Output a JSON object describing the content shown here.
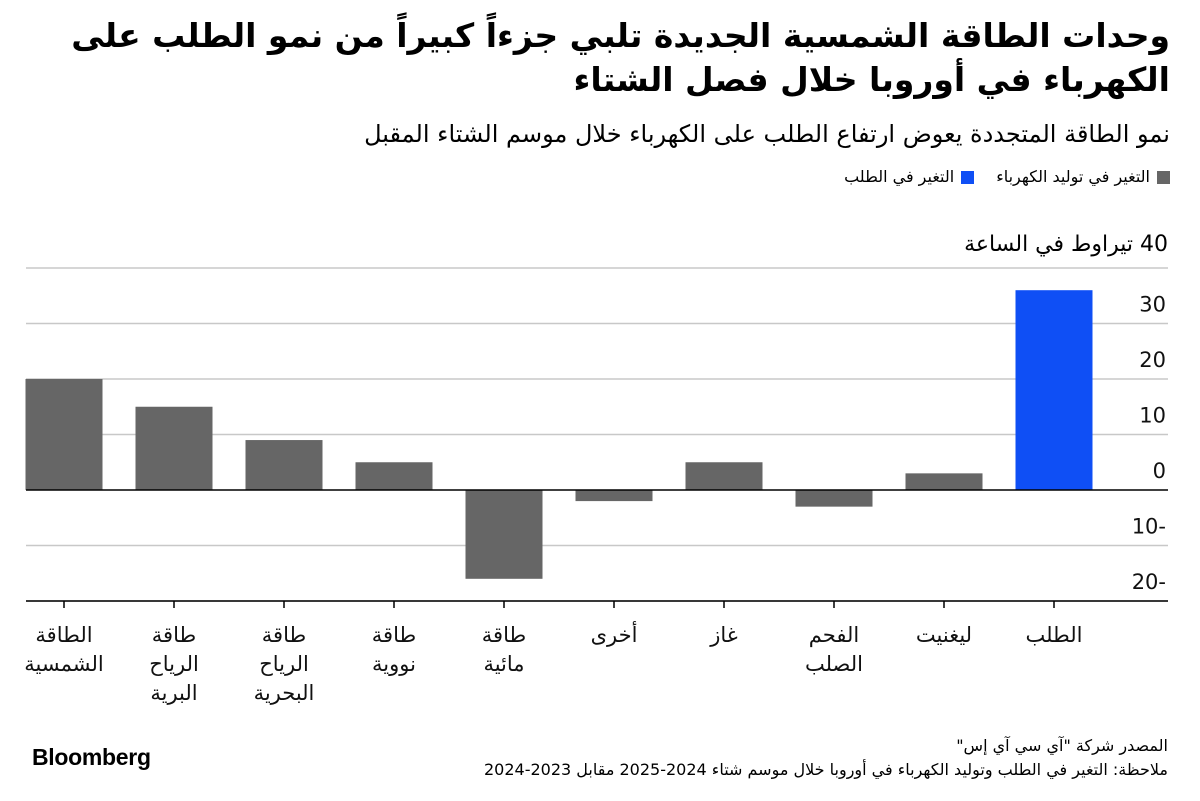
{
  "title": "وحدات الطاقة الشمسية الجديدة تلبي جزءاً كبيراً من نمو الطلب على الكهرباء في أوروبا خلال فصل الشتاء",
  "subtitle": "نمو الطاقة المتجددة يعوض ارتفاع الطلب على الكهرباء خلال موسم الشتاء المقبل",
  "legend": {
    "generation_label": "التغير في توليد الكهرباء",
    "demand_label": "التغير في الطلب"
  },
  "colors": {
    "generation": "#666666",
    "demand": "#0f4ff5",
    "grid": "#c8c8c8"
  },
  "unit_label": "40 تيراوط في الساعة",
  "chart_data": {
    "type": "bar",
    "categories": [
      [
        "الطاقة",
        "الشمسية"
      ],
      [
        "طاقة",
        "الرياح",
        "البرية"
      ],
      [
        "طاقة",
        "الرياح",
        "البحرية"
      ],
      [
        "طاقة",
        "نووية"
      ],
      [
        "طاقة",
        "مائية"
      ],
      [
        "أخرى"
      ],
      [
        "غاز"
      ],
      [
        "الفحم",
        "الصلب"
      ],
      [
        "ليغنيت"
      ],
      [
        "الطلب"
      ]
    ],
    "series": [
      {
        "name": "التغير في توليد الكهرباء",
        "values": [
          20,
          15,
          9,
          5,
          -16,
          -2,
          5,
          -3,
          3,
          null
        ]
      },
      {
        "name": "التغير في الطلب",
        "values": [
          null,
          null,
          null,
          null,
          null,
          null,
          null,
          null,
          null,
          36
        ]
      }
    ],
    "ylim": [
      -20,
      40
    ],
    "yticks": [
      30,
      20,
      10,
      0,
      -10,
      -20
    ],
    "ytick_labels": [
      "30",
      "20",
      "10",
      "0",
      "10-",
      "20-"
    ]
  },
  "footer": {
    "source": "المصدر شركة \"آي سي آي إس\"",
    "note": "ملاحظة: التغير في الطلب وتوليد الكهرباء في أوروبا خلال موسم شتاء 2024-2025 مقابل 2023-2024",
    "brand": "Bloomberg"
  }
}
